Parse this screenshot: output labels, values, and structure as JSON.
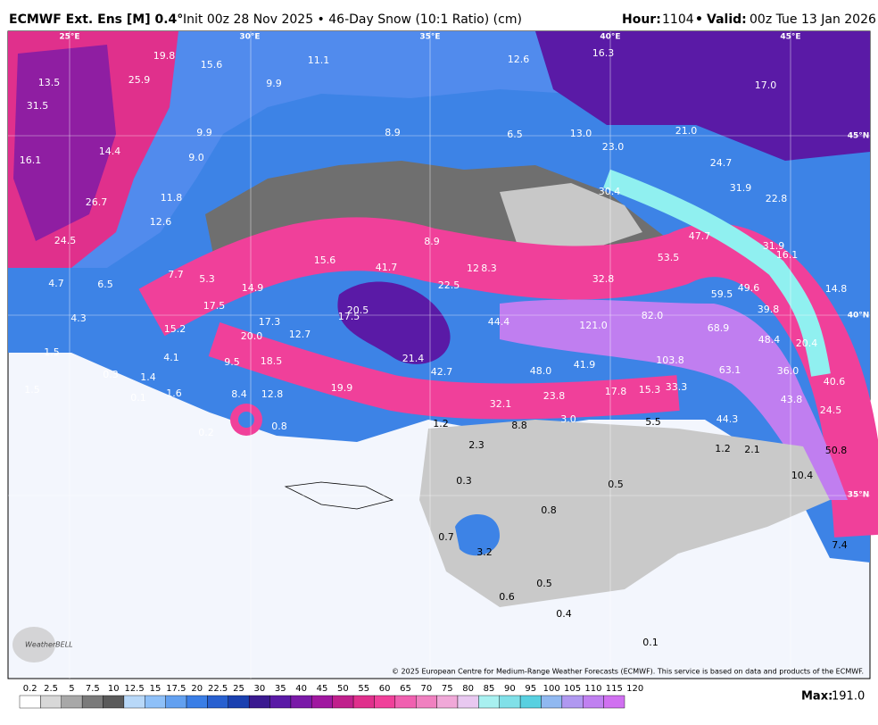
{
  "header": {
    "model": "ECMWF Ext. Ens [M] 0.4°",
    "subtitle": "Init 00z 28 Nov 2025 • 46-Day Snow (10:1 Ratio) (cm)",
    "hour_label": "Hour:",
    "hour": "1104",
    "sep": "•",
    "valid_label": "Valid:",
    "valid": "00z Tue 13 Jan 2026"
  },
  "longitudes": [
    "25°E",
    "30°E",
    "35°E",
    "40°E",
    "45°E"
  ],
  "latitudes": [
    "45°N",
    "40°N",
    "35°N"
  ],
  "map_labels": [
    "19.8",
    "15.6",
    "11.1",
    "12.6",
    "16.3",
    "17.0",
    "13.5",
    "25.9",
    "9.9",
    "31.5",
    "9.9",
    "8.9",
    "6.5",
    "13.0",
    "21.0",
    "16.1",
    "14.4",
    "9.0",
    "23.0",
    "24.7",
    "11.8",
    "26.7",
    "30.4",
    "31.9",
    "22.8",
    "12.6",
    "24.5",
    "8.9",
    "47.7",
    "31.9",
    "16.1",
    "53.5",
    "15.6",
    "41.7",
    "12",
    "8.3",
    "32.8",
    "7.7",
    "4.7",
    "6.5",
    "5.3",
    "14.9",
    "22.5",
    "14.8",
    "59.5",
    "49.6",
    "17.5",
    "20.5",
    "4.3",
    "17.3",
    "17.5",
    "44.4",
    "121.0",
    "82.0",
    "39.8",
    "15.2",
    "20.0",
    "12.7",
    "68.9",
    "48.4",
    "20.4",
    "1.5",
    "4.1",
    "9.5",
    "18.5",
    "21.4",
    "42.7",
    "48.0",
    "41.9",
    "103.8",
    "63.1",
    "36.0",
    "40.6",
    "0.3",
    "1.4",
    "1.5",
    "1.6",
    "8.4",
    "12.8",
    "19.9",
    "17.8",
    "15.3",
    "33.3",
    "43.8",
    "0.1",
    "23.8",
    "32.1",
    "24.5",
    "3.0",
    "5.5",
    "44.3",
    "0.2",
    "0.8",
    "1.2",
    "8.8",
    "2.3",
    "1.2",
    "2.1",
    "50.8",
    "0.3",
    "0.5",
    "10.4",
    "0.8",
    "0.7",
    "7.4",
    "3.2",
    "0.5",
    "0.6",
    "0.4",
    "0.1"
  ],
  "colorbar": [
    "0.2",
    "2.5",
    "5",
    "7.5",
    "10",
    "12.5",
    "15",
    "17.5",
    "20",
    "22.5",
    "25",
    "30",
    "35",
    "40",
    "45",
    "50",
    "55",
    "60",
    "65",
    "70",
    "75",
    "80",
    "85",
    "90",
    "95",
    "100",
    "105",
    "110",
    "115",
    "120"
  ],
  "max_label": "Max:",
  "max_value": "191.0",
  "logo": "WeatherBELL",
  "copyright": "© 2025 European Centre for Medium-Range Weather Forecasts (ECMWF). This service is based on data and products of the ECMWF."
}
